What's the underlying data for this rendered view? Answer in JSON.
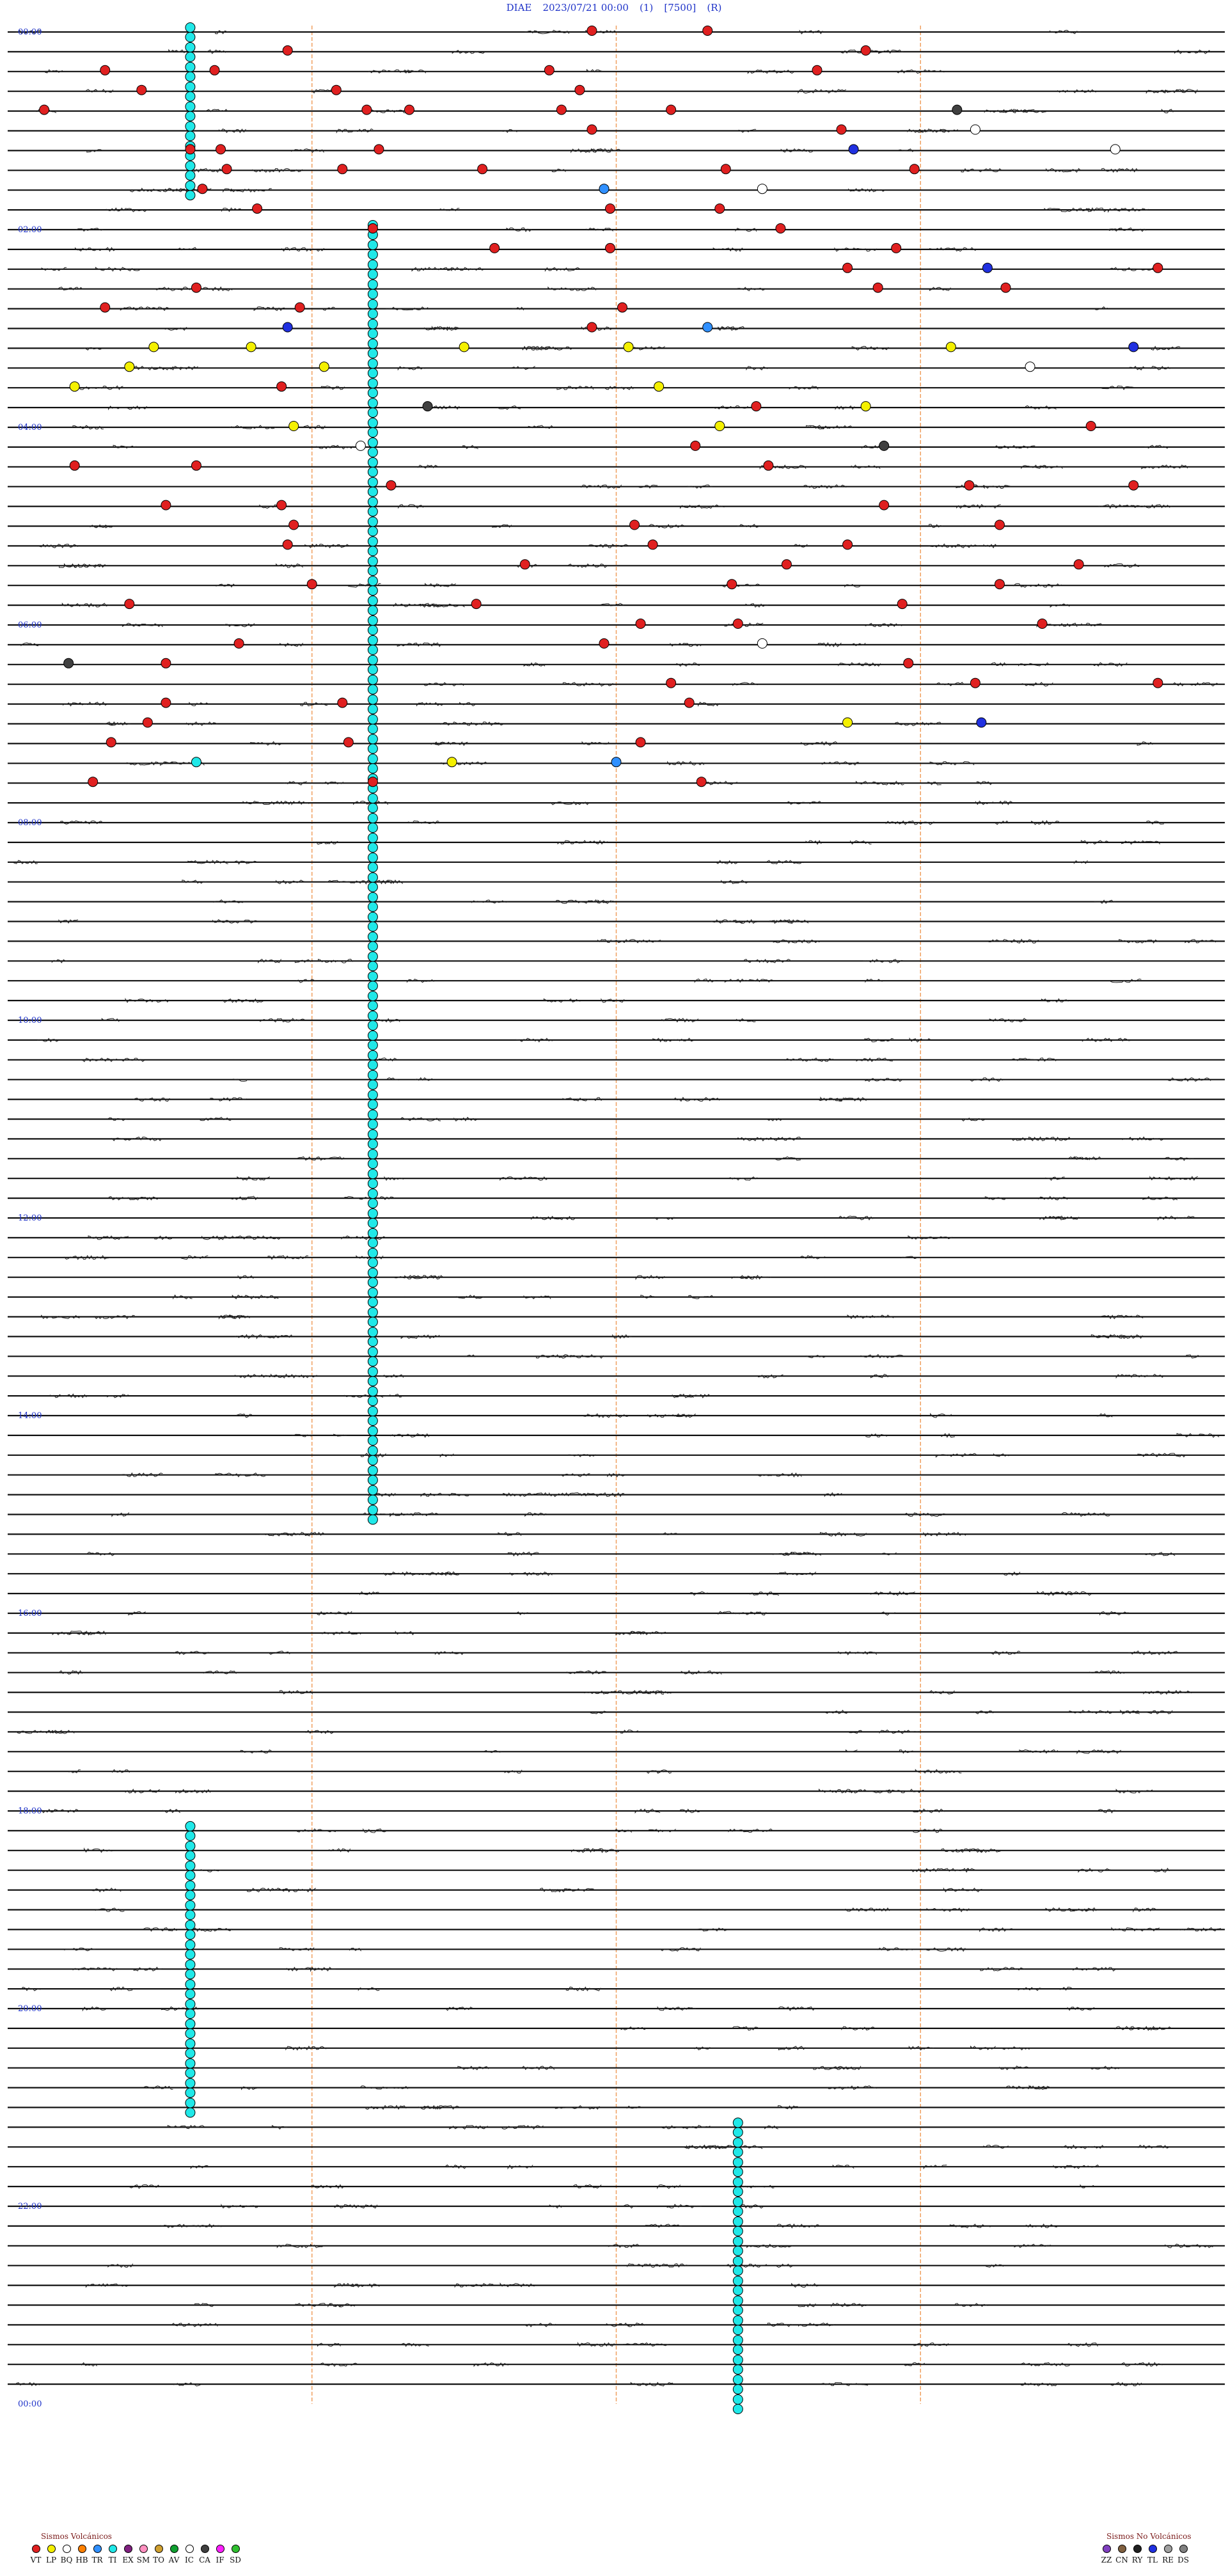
{
  "header": {
    "station": "DIAE",
    "datetime": "2023/07/21 00:00",
    "channel": "(1)",
    "scale": "[7500]",
    "mode": "(R)"
  },
  "chart_data": {
    "type": "scatter",
    "title": "DIAE 2023/07/21 00:00 (1) [7500] (R)",
    "hour_labels": [
      "00:00",
      "02:00",
      "04:00",
      "06:00",
      "08:00",
      "10:00",
      "12:00",
      "14:00",
      "16:00",
      "18:00",
      "20:00",
      "22:00",
      "00:00"
    ],
    "event_types": {
      "VT": "#e02020",
      "LP": "#f4f000",
      "BQ": "#ffffff",
      "HB": "#ff8000",
      "TR": "#3090ff",
      "TI": "#20e8e8",
      "EX": "#802080",
      "SM": "#ff90c0",
      "TO": "#d0a030",
      "AV": "#10a030",
      "IC": "#ffffff",
      "CA": "#404040",
      "IF": "#ff20ff",
      "SD": "#30c030",
      "ZZ": "#8040c0",
      "CN": "#806040",
      "RY": "#202020",
      "TL": "#2030e0",
      "RE": "#a0a0a0",
      "DS": "#808080"
    },
    "events": [
      {
        "row": 0,
        "minute": 9.6,
        "type": "VT"
      },
      {
        "row": 0,
        "minute": 11.5,
        "type": "VT"
      },
      {
        "row": 1,
        "minute": 4.6,
        "type": "VT"
      },
      {
        "row": 1,
        "minute": 14.1,
        "type": "VT"
      },
      {
        "row": 2,
        "minute": 1.6,
        "type": "VT"
      },
      {
        "row": 2,
        "minute": 3.4,
        "type": "VT"
      },
      {
        "row": 2,
        "minute": 13.3,
        "type": "VT"
      },
      {
        "row": 2,
        "minute": 8.9,
        "type": "VT"
      },
      {
        "row": 3,
        "minute": 2.2,
        "type": "VT"
      },
      {
        "row": 3,
        "minute": 5.4,
        "type": "VT"
      },
      {
        "row": 3,
        "minute": 9.4,
        "type": "VT"
      },
      {
        "row": 4,
        "minute": 0.6,
        "type": "VT"
      },
      {
        "row": 4,
        "minute": 5.9,
        "type": "VT"
      },
      {
        "row": 4,
        "minute": 6.6,
        "type": "VT"
      },
      {
        "row": 4,
        "minute": 9.1,
        "type": "VT"
      },
      {
        "row": 4,
        "minute": 10.9,
        "type": "VT"
      },
      {
        "row": 4,
        "minute": 15.6,
        "type": "CA"
      },
      {
        "row": 5,
        "minute": 9.6,
        "type": "VT"
      },
      {
        "row": 5,
        "minute": 13.7,
        "type": "VT"
      },
      {
        "row": 5,
        "minute": 15.9,
        "type": "BQ"
      },
      {
        "row": 6,
        "minute": 3.0,
        "type": "VT"
      },
      {
        "row": 6,
        "minute": 3.5,
        "type": "VT"
      },
      {
        "row": 6,
        "minute": 13.9,
        "type": "TL"
      },
      {
        "row": 6,
        "minute": 18.2,
        "type": "BQ"
      },
      {
        "row": 6,
        "minute": 6.1,
        "type": "VT"
      },
      {
        "row": 7,
        "minute": 3.6,
        "type": "VT"
      },
      {
        "row": 7,
        "minute": 5.5,
        "type": "VT"
      },
      {
        "row": 7,
        "minute": 7.8,
        "type": "VT"
      },
      {
        "row": 7,
        "minute": 11.8,
        "type": "VT"
      },
      {
        "row": 7,
        "minute": 14.9,
        "type": "VT"
      },
      {
        "row": 8,
        "minute": 3.2,
        "type": "VT"
      },
      {
        "row": 8,
        "minute": 9.8,
        "type": "TR"
      },
      {
        "row": 8,
        "minute": 12.4,
        "type": "BQ"
      },
      {
        "row": 9,
        "minute": 4.1,
        "type": "VT"
      },
      {
        "row": 9,
        "minute": 9.9,
        "type": "VT"
      },
      {
        "row": 9,
        "minute": 11.7,
        "type": "VT"
      },
      {
        "row": 10,
        "minute": 6.0,
        "type": "VT"
      },
      {
        "row": 10,
        "minute": 12.7,
        "type": "VT"
      },
      {
        "row": 11,
        "minute": 8.0,
        "type": "VT"
      },
      {
        "row": 11,
        "minute": 9.9,
        "type": "VT"
      },
      {
        "row": 11,
        "minute": 14.6,
        "type": "VT"
      },
      {
        "row": 12,
        "minute": 13.8,
        "type": "VT"
      },
      {
        "row": 12,
        "minute": 16.1,
        "type": "TL"
      },
      {
        "row": 12,
        "minute": 18.9,
        "type": "VT"
      },
      {
        "row": 13,
        "minute": 3.1,
        "type": "VT"
      },
      {
        "row": 13,
        "minute": 14.3,
        "type": "VT"
      },
      {
        "row": 13,
        "minute": 16.4,
        "type": "VT"
      },
      {
        "row": 14,
        "minute": 1.6,
        "type": "VT"
      },
      {
        "row": 14,
        "minute": 4.8,
        "type": "VT"
      },
      {
        "row": 14,
        "minute": 10.1,
        "type": "VT"
      },
      {
        "row": 15,
        "minute": 4.6,
        "type": "TL"
      },
      {
        "row": 15,
        "minute": 9.6,
        "type": "VT"
      },
      {
        "row": 15,
        "minute": 11.5,
        "type": "TR"
      },
      {
        "row": 16,
        "minute": 2.4,
        "type": "LP"
      },
      {
        "row": 16,
        "minute": 4.0,
        "type": "LP"
      },
      {
        "row": 16,
        "minute": 7.5,
        "type": "LP"
      },
      {
        "row": 16,
        "minute": 10.2,
        "type": "LP"
      },
      {
        "row": 16,
        "minute": 18.5,
        "type": "TL"
      },
      {
        "row": 16,
        "minute": 15.5,
        "type": "LP"
      },
      {
        "row": 17,
        "minute": 2.0,
        "type": "LP"
      },
      {
        "row": 17,
        "minute": 5.2,
        "type": "LP"
      },
      {
        "row": 17,
        "minute": 16.8,
        "type": "BQ"
      },
      {
        "row": 18,
        "minute": 1.1,
        "type": "LP"
      },
      {
        "row": 18,
        "minute": 4.5,
        "type": "VT"
      },
      {
        "row": 18,
        "minute": 10.7,
        "type": "LP"
      },
      {
        "row": 19,
        "minute": 6.9,
        "type": "CA"
      },
      {
        "row": 19,
        "minute": 12.3,
        "type": "VT"
      },
      {
        "row": 19,
        "minute": 14.1,
        "type": "LP"
      },
      {
        "row": 20,
        "minute": 4.7,
        "type": "LP"
      },
      {
        "row": 20,
        "minute": 11.7,
        "type": "LP"
      },
      {
        "row": 20,
        "minute": 17.8,
        "type": "VT"
      },
      {
        "row": 21,
        "minute": 5.8,
        "type": "BQ"
      },
      {
        "row": 21,
        "minute": 11.3,
        "type": "VT"
      },
      {
        "row": 21,
        "minute": 14.4,
        "type": "CA"
      },
      {
        "row": 22,
        "minute": 1.1,
        "type": "VT"
      },
      {
        "row": 22,
        "minute": 3.1,
        "type": "VT"
      },
      {
        "row": 22,
        "minute": 12.5,
        "type": "VT"
      },
      {
        "row": 23,
        "minute": 6.3,
        "type": "VT"
      },
      {
        "row": 23,
        "minute": 15.8,
        "type": "VT"
      },
      {
        "row": 23,
        "minute": 18.5,
        "type": "VT"
      },
      {
        "row": 24,
        "minute": 2.6,
        "type": "VT"
      },
      {
        "row": 24,
        "minute": 4.5,
        "type": "VT"
      },
      {
        "row": 24,
        "minute": 14.4,
        "type": "VT"
      },
      {
        "row": 25,
        "minute": 4.7,
        "type": "VT"
      },
      {
        "row": 25,
        "minute": 10.3,
        "type": "VT"
      },
      {
        "row": 25,
        "minute": 16.3,
        "type": "VT"
      },
      {
        "row": 26,
        "minute": 4.6,
        "type": "VT"
      },
      {
        "row": 26,
        "minute": 10.6,
        "type": "VT"
      },
      {
        "row": 26,
        "minute": 13.8,
        "type": "VT"
      },
      {
        "row": 27,
        "minute": 8.5,
        "type": "VT"
      },
      {
        "row": 27,
        "minute": 12.8,
        "type": "VT"
      },
      {
        "row": 27,
        "minute": 17.6,
        "type": "VT"
      },
      {
        "row": 28,
        "minute": 5.0,
        "type": "VT"
      },
      {
        "row": 28,
        "minute": 11.9,
        "type": "VT"
      },
      {
        "row": 28,
        "minute": 16.3,
        "type": "VT"
      },
      {
        "row": 29,
        "minute": 2.0,
        "type": "VT"
      },
      {
        "row": 29,
        "minute": 7.7,
        "type": "VT"
      },
      {
        "row": 29,
        "minute": 14.7,
        "type": "VT"
      },
      {
        "row": 30,
        "minute": 10.4,
        "type": "VT"
      },
      {
        "row": 30,
        "minute": 12.0,
        "type": "VT"
      },
      {
        "row": 30,
        "minute": 17.0,
        "type": "VT"
      },
      {
        "row": 31,
        "minute": 3.8,
        "type": "VT"
      },
      {
        "row": 31,
        "minute": 9.8,
        "type": "VT"
      },
      {
        "row": 31,
        "minute": 12.4,
        "type": "BQ"
      },
      {
        "row": 32,
        "minute": 1.0,
        "type": "CA"
      },
      {
        "row": 32,
        "minute": 2.6,
        "type": "VT"
      },
      {
        "row": 32,
        "minute": 14.8,
        "type": "VT"
      },
      {
        "row": 33,
        "minute": 10.9,
        "type": "VT"
      },
      {
        "row": 33,
        "minute": 15.9,
        "type": "VT"
      },
      {
        "row": 33,
        "minute": 18.9,
        "type": "VT"
      },
      {
        "row": 34,
        "minute": 2.6,
        "type": "VT"
      },
      {
        "row": 34,
        "minute": 5.5,
        "type": "VT"
      },
      {
        "row": 34,
        "minute": 11.2,
        "type": "VT"
      },
      {
        "row": 35,
        "minute": 2.3,
        "type": "VT"
      },
      {
        "row": 35,
        "minute": 13.8,
        "type": "LP"
      },
      {
        "row": 35,
        "minute": 16.0,
        "type": "TL"
      },
      {
        "row": 36,
        "minute": 1.7,
        "type": "VT"
      },
      {
        "row": 36,
        "minute": 5.6,
        "type": "VT"
      },
      {
        "row": 36,
        "minute": 10.4,
        "type": "VT"
      },
      {
        "row": 37,
        "minute": 3.1,
        "type": "TI"
      },
      {
        "row": 37,
        "minute": 7.3,
        "type": "LP"
      },
      {
        "row": 37,
        "minute": 10.0,
        "type": "TR"
      },
      {
        "row": 38,
        "minute": 1.4,
        "type": "VT"
      },
      {
        "row": 38,
        "minute": 6.0,
        "type": "VT"
      },
      {
        "row": 38,
        "minute": 11.4,
        "type": "VT"
      }
    ],
    "ti_columns": [
      {
        "minute": 3.0,
        "row_start": 0,
        "row_end": 8
      },
      {
        "minute": 6.0,
        "row_start": 10,
        "row_end": 37
      },
      {
        "minute": 6.0,
        "row_start": 38,
        "row_end": 75
      },
      {
        "minute": 3.0,
        "row_start": 91,
        "row_end": 105
      },
      {
        "minute": 12.0,
        "row_start": 106,
        "row_end": 120
      }
    ],
    "xlim": [
      0,
      20
    ],
    "rows": 120,
    "grid": true
  },
  "legend_left": {
    "title": "Sismos Volcánicos",
    "items": [
      "VT",
      "LP",
      "BQ",
      "HB",
      "TR",
      "TI",
      "EX",
      "SM",
      "TO",
      "AV",
      "IC",
      "CA",
      "IF",
      "SD"
    ]
  },
  "legend_right": {
    "title": "Sismos No Volcánicos",
    "items": [
      "ZZ",
      "CN",
      "RY",
      "TL",
      "RE",
      "DS"
    ]
  }
}
